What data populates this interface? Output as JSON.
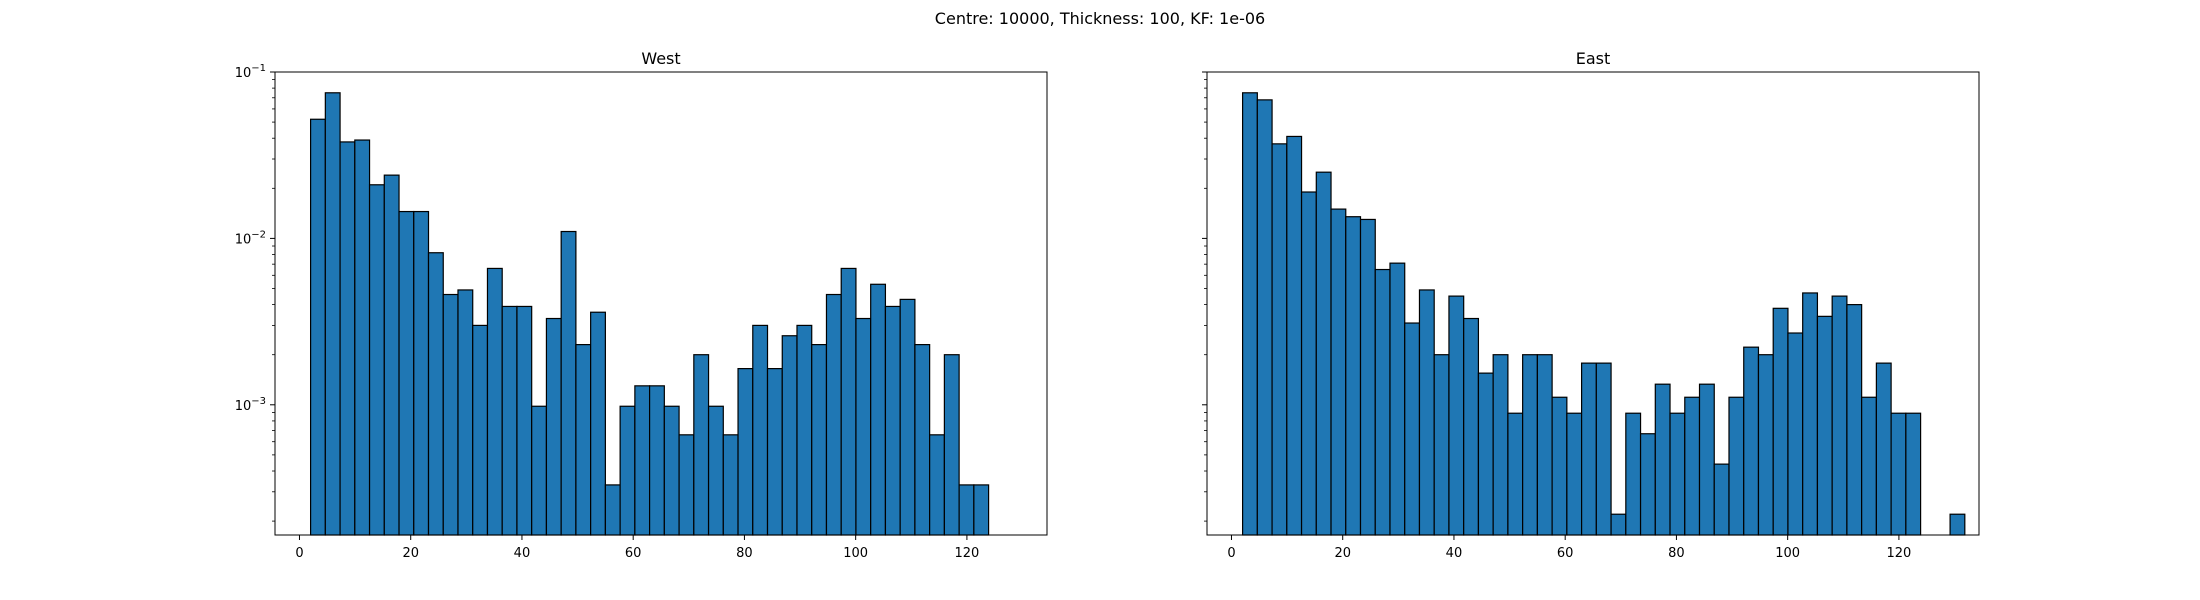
{
  "figure": {
    "title": "Centre: 10000, Thickness: 100, KF: 1e-06"
  },
  "chart_data": [
    {
      "type": "bar",
      "title": "West",
      "xlabel": "",
      "ylabel": "",
      "yscale": "log",
      "xlim": [
        -4.4,
        134.4
      ],
      "ylim": [
        0.000165,
        0.1
      ],
      "xticks": [
        0,
        20,
        40,
        60,
        80,
        100,
        120
      ],
      "yticks": [
        {
          "value": 0.001,
          "base": "10",
          "exp": "−3"
        },
        {
          "value": 0.01,
          "base": "10",
          "exp": "−2"
        },
        {
          "value": 0.1,
          "base": "10",
          "exp": "−1"
        }
      ],
      "bin_edges_start": 2,
      "bin_width": 2.65,
      "values": [
        0.052,
        0.075,
        0.038,
        0.039,
        0.021,
        0.024,
        0.0145,
        0.0145,
        0.0082,
        0.0046,
        0.0049,
        0.003,
        0.0066,
        0.0039,
        0.0039,
        0.00098,
        0.0033,
        0.011,
        0.0023,
        0.0036,
        0.00033,
        0.00098,
        0.0013,
        0.0013,
        0.00098,
        0.00066,
        0.002,
        0.00098,
        0.00066,
        0.00165,
        0.003,
        0.00165,
        0.0026,
        0.003,
        0.0023,
        0.0046,
        0.0066,
        0.0033,
        0.0053,
        0.0039,
        0.0043,
        0.0023,
        0.00066,
        0.002,
        0.00033,
        0.00033
      ],
      "bar_color": "#1f77b4",
      "edge_color": "#000000"
    },
    {
      "type": "bar",
      "title": "East",
      "xlabel": "",
      "ylabel": "",
      "yscale": "log",
      "xlim": [
        -4.4,
        134.4
      ],
      "ylim": [
        0.000165,
        0.1
      ],
      "xticks": [
        0,
        20,
        40,
        60,
        80,
        100,
        120
      ],
      "yticks": [],
      "bin_edges_start": 2,
      "bin_width": 2.65,
      "values": [
        0.075,
        0.068,
        0.037,
        0.041,
        0.019,
        0.025,
        0.015,
        0.0135,
        0.013,
        0.0065,
        0.0071,
        0.0031,
        0.0049,
        0.002,
        0.0045,
        0.0033,
        0.00155,
        0.002,
        0.00089,
        0.002,
        0.002,
        0.00111,
        0.00089,
        0.00178,
        0.00178,
        0.00022,
        0.00089,
        0.00067,
        0.00133,
        0.00089,
        0.00111,
        0.00133,
        0.00044,
        0.00111,
        0.00222,
        0.002,
        0.0038,
        0.0027,
        0.0047,
        0.0034,
        0.0045,
        0.004,
        0.00111,
        0.00178,
        0.00089,
        0.00089,
        0,
        0,
        0.00022
      ],
      "bar_color": "#1f77b4",
      "edge_color": "#000000"
    }
  ]
}
